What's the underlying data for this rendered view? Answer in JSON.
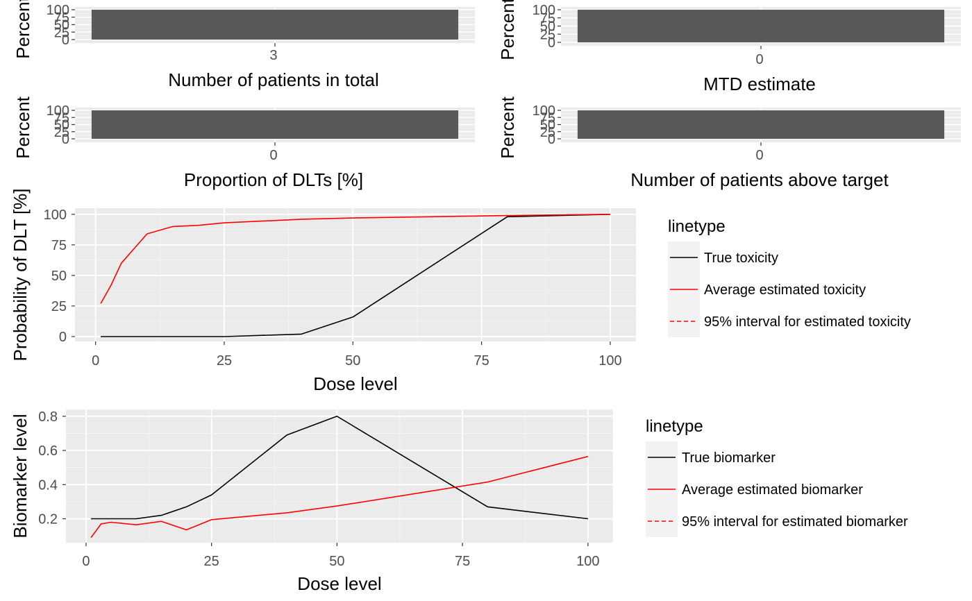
{
  "chart_data": [
    {
      "type": "bar",
      "xlabel": "Number of patients in total",
      "ylabel": "Percent",
      "categories": [
        "3"
      ],
      "values": [
        100
      ],
      "yticks": [
        "0",
        "25",
        "50",
        "75",
        "100"
      ],
      "ylim": [
        0,
        100
      ],
      "bar_color": "#595959"
    },
    {
      "type": "bar",
      "xlabel": "MTD estimate",
      "ylabel": "Percent",
      "categories": [
        "0"
      ],
      "values": [
        100
      ],
      "yticks": [
        "0",
        "25",
        "50",
        "75",
        "100"
      ],
      "ylim": [
        0,
        100
      ],
      "bar_color": "#595959"
    },
    {
      "type": "bar",
      "xlabel": "Proportion of DLTs [%]",
      "ylabel": "Percent",
      "categories": [
        "0"
      ],
      "values": [
        100
      ],
      "yticks": [
        "0",
        "25",
        "50",
        "75",
        "100"
      ],
      "ylim": [
        0,
        100
      ],
      "bar_color": "#595959"
    },
    {
      "type": "bar",
      "xlabel": "Number of patients above target",
      "ylabel": "Percent",
      "categories": [
        "0"
      ],
      "values": [
        100
      ],
      "yticks": [
        "0",
        "25",
        "50",
        "75",
        "100"
      ],
      "ylim": [
        0,
        100
      ],
      "bar_color": "#595959"
    },
    {
      "type": "line",
      "xlabel": "Dose level",
      "ylabel": "Probability of DLT [%]",
      "xlim": [
        -4,
        105
      ],
      "ylim": [
        -4,
        105
      ],
      "xticks": [
        0,
        25,
        50,
        75,
        100
      ],
      "yticks": [
        0,
        25,
        50,
        75,
        100
      ],
      "grid": true,
      "legend": {
        "title": "linetype",
        "placement": "right",
        "entries": [
          {
            "label": "True toxicity",
            "color": "#000000",
            "dash": "solid"
          },
          {
            "label": "Average estimated toxicity",
            "color": "#ff0000",
            "dash": "solid"
          },
          {
            "label": "95% interval for estimated toxicity",
            "color": "#ff0000",
            "dash": "dashed"
          }
        ]
      },
      "series": [
        {
          "name": "True toxicity",
          "color": "#000000",
          "x": [
            1,
            3,
            5,
            10,
            15,
            20,
            25,
            40,
            50,
            80,
            100
          ],
          "y": [
            0,
            0,
            0,
            0,
            0,
            0,
            0,
            2,
            16,
            98,
            100
          ]
        },
        {
          "name": "Average estimated toxicity",
          "color": "#ff0000",
          "x": [
            1,
            3,
            5,
            10,
            15,
            20,
            25,
            40,
            50,
            80,
            100
          ],
          "y": [
            27,
            42,
            60,
            84,
            90,
            91,
            93,
            96,
            97,
            99,
            100
          ]
        }
      ]
    },
    {
      "type": "line",
      "xlabel": "Dose level",
      "ylabel": "Biomarker level",
      "xlim": [
        -4,
        105
      ],
      "ylim": [
        0.06,
        0.84
      ],
      "xticks": [
        0,
        25,
        50,
        75,
        100
      ],
      "yticks": [
        0.2,
        0.4,
        0.6,
        0.8
      ],
      "ytick_labels": [
        "0.2",
        "0.4",
        "0.6",
        "0.8"
      ],
      "grid": true,
      "legend": {
        "title": "linetype",
        "placement": "right",
        "entries": [
          {
            "label": "True biomarker",
            "color": "#000000",
            "dash": "solid"
          },
          {
            "label": "Average estimated biomarker",
            "color": "#ff0000",
            "dash": "solid"
          },
          {
            "label": "95% interval for estimated biomarker",
            "color": "#ff0000",
            "dash": "dashed"
          }
        ]
      },
      "series": [
        {
          "name": "True biomarker",
          "color": "#000000",
          "x": [
            1,
            3,
            5,
            10,
            15,
            20,
            25,
            40,
            50,
            80,
            100
          ],
          "y": [
            0.2,
            0.2,
            0.2,
            0.2,
            0.22,
            0.27,
            0.34,
            0.69,
            0.8,
            0.27,
            0.2
          ]
        },
        {
          "name": "Average estimated biomarker",
          "color": "#ff0000",
          "x": [
            1,
            3,
            5,
            10,
            15,
            20,
            25,
            40,
            50,
            80,
            100
          ],
          "y": [
            0.09,
            0.17,
            0.18,
            0.165,
            0.185,
            0.135,
            0.195,
            0.235,
            0.275,
            0.415,
            0.565
          ]
        }
      ]
    }
  ]
}
